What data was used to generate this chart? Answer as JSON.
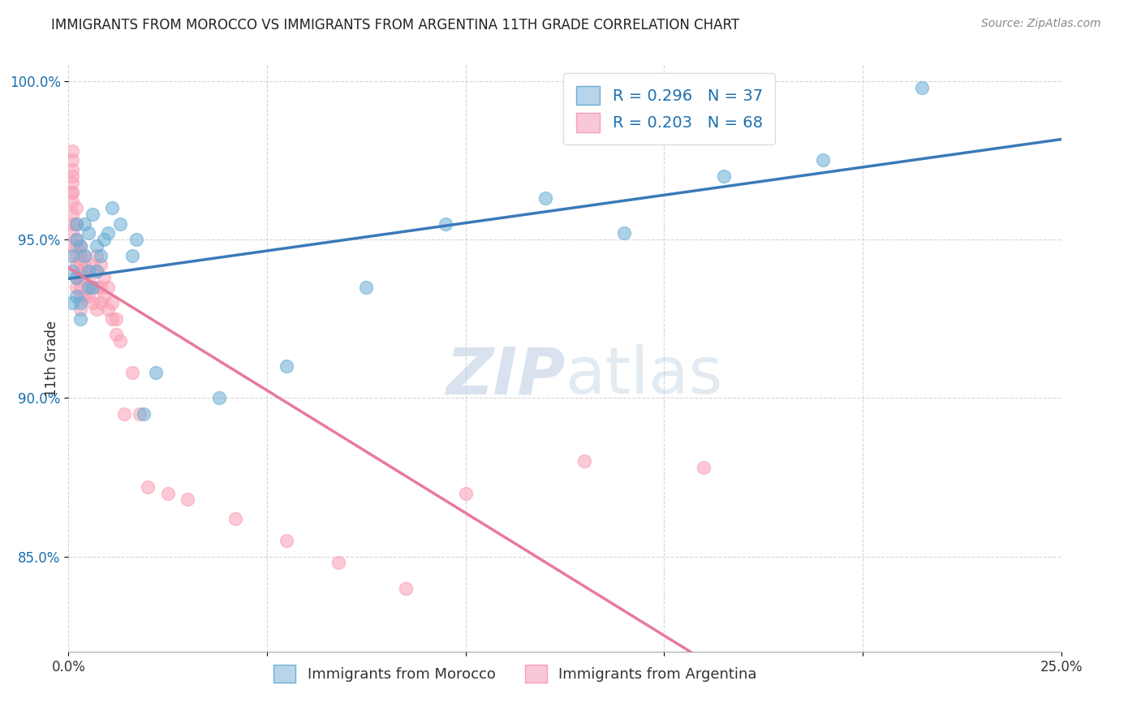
{
  "title": "IMMIGRANTS FROM MOROCCO VS IMMIGRANTS FROM ARGENTINA 11TH GRADE CORRELATION CHART",
  "source": "Source: ZipAtlas.com",
  "xlabel_label": "Immigrants from Morocco",
  "ylabel_label": "Immigrants from Argentina",
  "ylabel": "11th Grade",
  "xlim": [
    0.0,
    0.25
  ],
  "ylim": [
    0.82,
    1.005
  ],
  "xticks": [
    0.0,
    0.05,
    0.1,
    0.15,
    0.2,
    0.25
  ],
  "xtick_labels": [
    "0.0%",
    "",
    "",
    "",
    "",
    "25.0%"
  ],
  "yticks": [
    0.85,
    0.9,
    0.95,
    1.0
  ],
  "ytick_labels": [
    "85.0%",
    "90.0%",
    "95.0%",
    "100.0%"
  ],
  "morocco_color": "#6baed6",
  "argentina_color": "#fa9fb5",
  "morocco_R": 0.296,
  "morocco_N": 37,
  "argentina_R": 0.203,
  "argentina_N": 68,
  "grid_color": "#cccccc",
  "background_color": "#ffffff",
  "morocco_x": [
    0.001,
    0.001,
    0.001,
    0.002,
    0.002,
    0.002,
    0.002,
    0.003,
    0.003,
    0.003,
    0.004,
    0.004,
    0.005,
    0.005,
    0.005,
    0.006,
    0.006,
    0.007,
    0.007,
    0.008,
    0.009,
    0.01,
    0.011,
    0.013,
    0.016,
    0.017,
    0.019,
    0.022,
    0.038,
    0.055,
    0.075,
    0.095,
    0.12,
    0.14,
    0.165,
    0.19,
    0.215
  ],
  "morocco_y": [
    0.93,
    0.94,
    0.945,
    0.932,
    0.938,
    0.95,
    0.955,
    0.925,
    0.93,
    0.948,
    0.945,
    0.955,
    0.935,
    0.94,
    0.952,
    0.935,
    0.958,
    0.94,
    0.948,
    0.945,
    0.95,
    0.952,
    0.96,
    0.955,
    0.945,
    0.95,
    0.895,
    0.908,
    0.9,
    0.91,
    0.935,
    0.955,
    0.963,
    0.952,
    0.97,
    0.975,
    0.998
  ],
  "argentina_x": [
    0.001,
    0.001,
    0.001,
    0.001,
    0.001,
    0.001,
    0.001,
    0.001,
    0.001,
    0.001,
    0.001,
    0.001,
    0.002,
    0.002,
    0.002,
    0.002,
    0.002,
    0.002,
    0.002,
    0.002,
    0.003,
    0.003,
    0.003,
    0.003,
    0.003,
    0.003,
    0.003,
    0.003,
    0.004,
    0.004,
    0.004,
    0.004,
    0.005,
    0.005,
    0.005,
    0.005,
    0.006,
    0.006,
    0.006,
    0.007,
    0.007,
    0.007,
    0.007,
    0.008,
    0.008,
    0.008,
    0.009,
    0.009,
    0.01,
    0.01,
    0.011,
    0.011,
    0.012,
    0.012,
    0.013,
    0.014,
    0.016,
    0.018,
    0.02,
    0.025,
    0.03,
    0.042,
    0.055,
    0.068,
    0.085,
    0.1,
    0.13,
    0.16
  ],
  "argentina_y": [
    0.955,
    0.962,
    0.965,
    0.968,
    0.97,
    0.972,
    0.975,
    0.978,
    0.965,
    0.958,
    0.952,
    0.948,
    0.96,
    0.955,
    0.95,
    0.945,
    0.948,
    0.942,
    0.938,
    0.935,
    0.948,
    0.945,
    0.94,
    0.935,
    0.942,
    0.938,
    0.932,
    0.928,
    0.945,
    0.942,
    0.938,
    0.932,
    0.94,
    0.938,
    0.932,
    0.935,
    0.935,
    0.942,
    0.93,
    0.945,
    0.935,
    0.94,
    0.928,
    0.942,
    0.93,
    0.935,
    0.938,
    0.932,
    0.928,
    0.935,
    0.925,
    0.93,
    0.92,
    0.925,
    0.918,
    0.895,
    0.908,
    0.895,
    0.872,
    0.87,
    0.868,
    0.862,
    0.855,
    0.848,
    0.84,
    0.87,
    0.88,
    0.878
  ]
}
